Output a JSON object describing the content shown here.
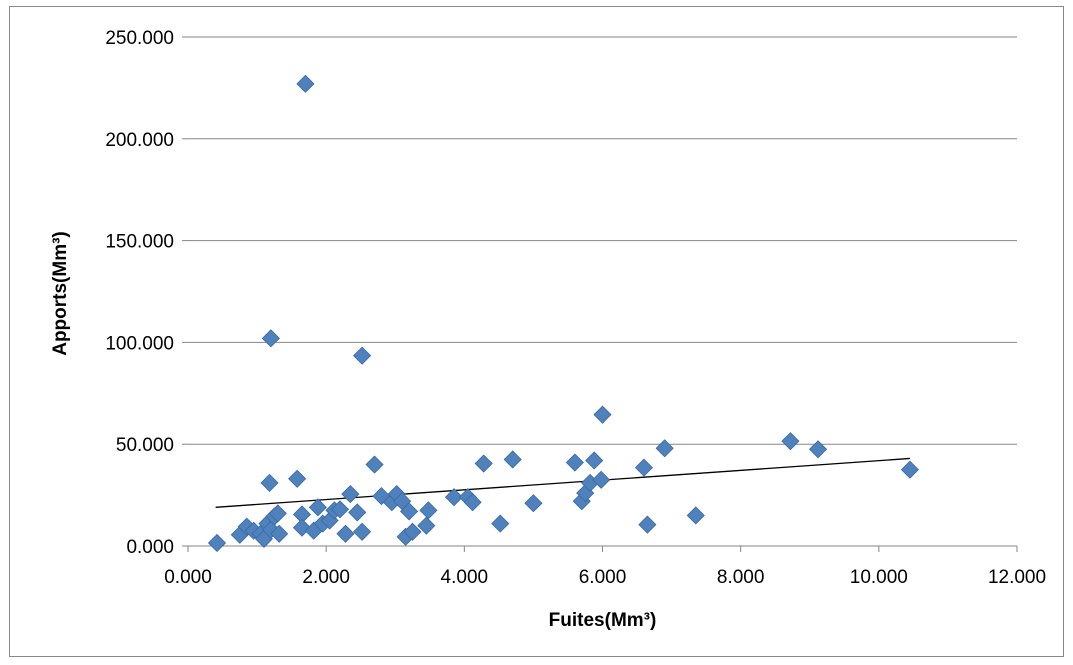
{
  "chart_data": {
    "type": "scatter",
    "xlabel": "Fuites(Mm³)",
    "ylabel": "Apports(Mm³)",
    "xlim": [
      0,
      12
    ],
    "ylim": [
      0,
      250
    ],
    "x_ticks": [
      0,
      2,
      4,
      6,
      8,
      10,
      12
    ],
    "y_ticks": [
      0,
      50,
      100,
      150,
      200,
      250
    ],
    "x_tick_labels": [
      "0.000",
      "2.000",
      "4.000",
      "6.000",
      "8.000",
      "10.000",
      "12.000"
    ],
    "y_tick_labels": [
      "0.000",
      "50.000",
      "100.000",
      "150.000",
      "200.000",
      "250.000"
    ],
    "grid": "horizontal",
    "legend": "none",
    "marker_color": "#4F81BD",
    "marker_edge_color": "#3A6AA0",
    "trendline": {
      "type": "linear",
      "x": [
        0.4,
        10.45
      ],
      "y": [
        19,
        43
      ],
      "color": "#000000"
    },
    "points": [
      [
        0.42,
        1.5
      ],
      [
        0.75,
        5.5
      ],
      [
        0.85,
        9.5
      ],
      [
        0.95,
        7.5
      ],
      [
        1.05,
        6.0
      ],
      [
        1.1,
        3.5
      ],
      [
        1.15,
        11.0
      ],
      [
        1.2,
        8.0
      ],
      [
        1.25,
        14.5
      ],
      [
        1.3,
        16.0
      ],
      [
        1.32,
        6.0
      ],
      [
        1.18,
        31.0
      ],
      [
        1.2,
        102.0
      ],
      [
        1.58,
        33.0
      ],
      [
        1.65,
        15.5
      ],
      [
        1.65,
        9.0
      ],
      [
        1.7,
        227.0
      ],
      [
        1.82,
        7.5
      ],
      [
        1.88,
        19.0
      ],
      [
        1.95,
        11.0
      ],
      [
        2.05,
        12.5
      ],
      [
        2.12,
        17.5
      ],
      [
        2.2,
        18.0
      ],
      [
        2.28,
        6.0
      ],
      [
        2.35,
        25.5
      ],
      [
        2.45,
        16.5
      ],
      [
        2.52,
        7.0
      ],
      [
        2.52,
        93.5
      ],
      [
        2.7,
        40.0
      ],
      [
        2.8,
        24.5
      ],
      [
        2.95,
        21.5
      ],
      [
        3.02,
        25.5
      ],
      [
        3.1,
        22.0
      ],
      [
        3.15,
        4.5
      ],
      [
        3.2,
        17.0
      ],
      [
        3.25,
        7.0
      ],
      [
        3.45,
        10.0
      ],
      [
        3.48,
        17.5
      ],
      [
        3.85,
        24.0
      ],
      [
        4.05,
        24.0
      ],
      [
        4.12,
        21.5
      ],
      [
        4.28,
        40.5
      ],
      [
        4.52,
        11.0
      ],
      [
        4.7,
        42.5
      ],
      [
        5.0,
        21.0
      ],
      [
        5.6,
        41.0
      ],
      [
        5.7,
        22.0
      ],
      [
        5.75,
        26.0
      ],
      [
        5.82,
        31.0
      ],
      [
        5.88,
        42.0
      ],
      [
        5.98,
        32.5
      ],
      [
        6.0,
        64.5
      ],
      [
        6.6,
        38.5
      ],
      [
        6.65,
        10.5
      ],
      [
        6.9,
        48.0
      ],
      [
        7.35,
        15.0
      ],
      [
        8.72,
        51.5
      ],
      [
        9.12,
        47.5
      ],
      [
        10.45,
        37.5
      ]
    ]
  }
}
